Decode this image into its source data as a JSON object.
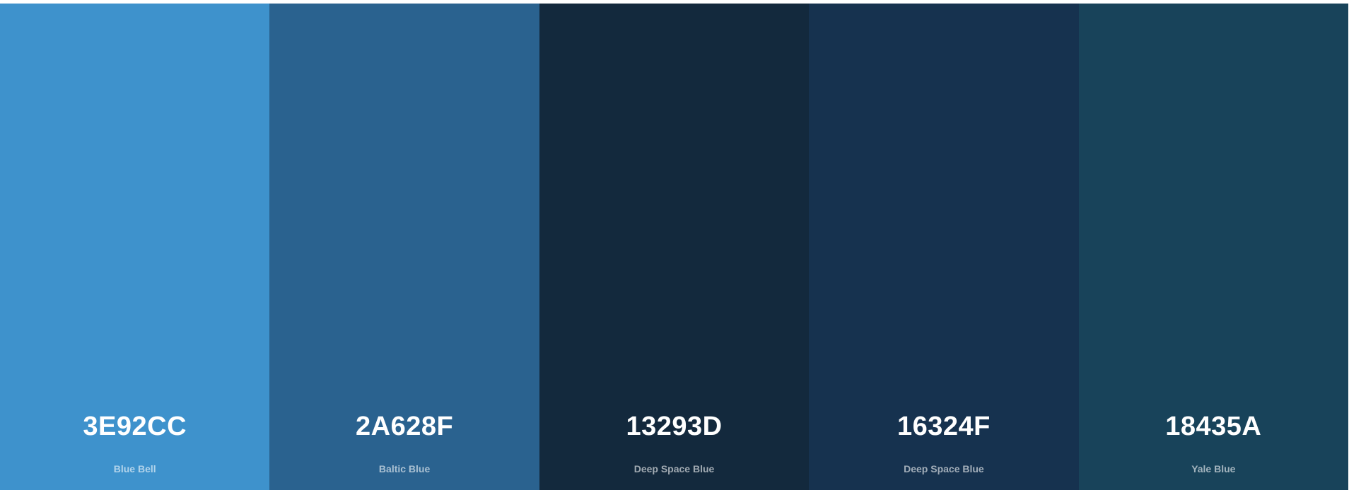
{
  "swatches": [
    {
      "hex": "3E92CC",
      "name": "Blue Bell",
      "color": "#3E92CC"
    },
    {
      "hex": "2A628F",
      "name": "Baltic Blue",
      "color": "#2A628F"
    },
    {
      "hex": "13293D",
      "name": "Deep Space Blue",
      "color": "#13293D"
    },
    {
      "hex": "16324F",
      "name": "Deep Space Blue",
      "color": "#16324F"
    },
    {
      "hex": "18435A",
      "name": "Yale Blue",
      "color": "#18435A"
    }
  ]
}
